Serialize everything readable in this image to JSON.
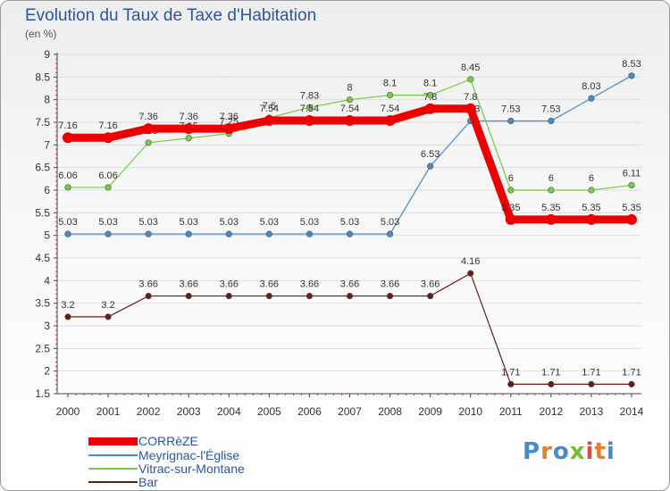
{
  "chart_data": {
    "type": "line",
    "title": "Evolution du Taux de Taxe d'Habitation",
    "subtitle": "(en %)",
    "x": [
      2000,
      2001,
      2002,
      2003,
      2004,
      2005,
      2006,
      2007,
      2008,
      2009,
      2010,
      2011,
      2012,
      2013,
      2014
    ],
    "ylim": [
      1.5,
      9
    ],
    "yticks": [
      1.5,
      2,
      2.5,
      3,
      3.5,
      4,
      4.5,
      5,
      5.5,
      6,
      6.5,
      7,
      7.5,
      8,
      8.5,
      9
    ],
    "grid": "horizontal",
    "legend_position": "bottom-left",
    "series": [
      {
        "name": "CORRèZE",
        "color": "#ee0000",
        "emphasis": true,
        "values": [
          7.16,
          7.16,
          7.36,
          7.36,
          7.36,
          7.54,
          7.54,
          7.54,
          7.54,
          7.8,
          7.8,
          5.35,
          5.35,
          5.35,
          5.35
        ],
        "labels": [
          "7.16",
          "7.16",
          "7.36",
          "7.36",
          "7.36",
          "7.54",
          "7.54",
          "7.54",
          "7.54",
          "7.8",
          "7.8",
          "5.35",
          "5.35",
          "5.35",
          "5.35"
        ]
      },
      {
        "name": "Meyrignac-l'Église",
        "color": "#4a8bc7",
        "values": [
          5.03,
          5.03,
          5.03,
          5.03,
          5.03,
          5.03,
          5.03,
          5.03,
          5.03,
          6.53,
          7.53,
          7.53,
          7.53,
          8.03,
          8.53
        ],
        "labels": [
          "5.03",
          "5.03",
          "5.03",
          "5.03",
          "5.03",
          "5.03",
          "5.03",
          "5.03",
          "5.03",
          "6.53",
          "7.53",
          "7.53",
          "7.53",
          "8.03",
          "8.53"
        ]
      },
      {
        "name": "Vitrac-sur-Montane",
        "color": "#77cc44",
        "values": [
          6.06,
          6.06,
          7.05,
          7.15,
          7.25,
          7.6,
          7.83,
          8,
          8.1,
          8.1,
          8.45,
          6,
          6,
          6,
          6.11
        ],
        "labels": [
          "6.06",
          "6.06",
          "7.05",
          "7.15",
          "7.25",
          "7.6",
          "7.83",
          "8",
          "8.1",
          "8.1",
          "8.45",
          "6",
          "6",
          "6",
          "6.11"
        ]
      },
      {
        "name": "Bar",
        "color": "#6b1a1a",
        "values": [
          3.2,
          3.2,
          3.66,
          3.66,
          3.66,
          3.66,
          3.66,
          3.66,
          3.66,
          3.66,
          4.16,
          1.71,
          1.71,
          1.71,
          1.71
        ],
        "labels": [
          "3.2",
          "3.2",
          "3.66",
          "3.66",
          "3.66",
          "3.66",
          "3.66",
          "3.66",
          "3.66",
          "3.66",
          "4.16",
          "1.71",
          "1.71",
          "1.71",
          "1.71"
        ]
      }
    ]
  },
  "logo": {
    "text": "Proxiti",
    "colors": [
      "#4a8bc7",
      "#e2822c",
      "#4a8bc7",
      "#77bb33",
      "#d94c4c",
      "#e2822c",
      "#4a8bc7"
    ]
  }
}
